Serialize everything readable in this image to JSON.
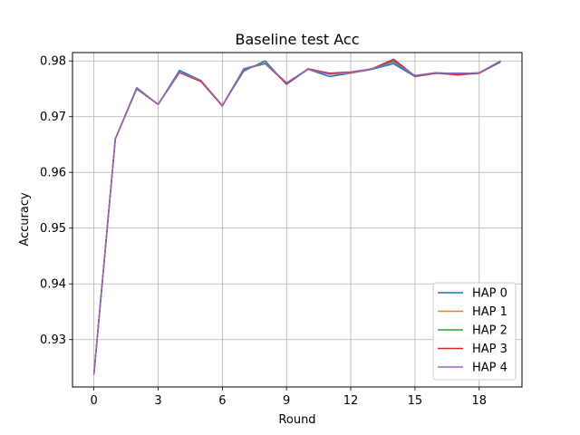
{
  "chart_data": {
    "type": "line",
    "title": "Baseline test Acc",
    "xlabel": "Round",
    "ylabel": "Accuracy",
    "xlim": [
      -1,
      20
    ],
    "ylim": [
      0.9215,
      0.9815
    ],
    "xticks": [
      0,
      3,
      6,
      9,
      12,
      15,
      18
    ],
    "yticks": [
      0.93,
      0.94,
      0.95,
      0.96,
      0.97,
      0.98
    ],
    "ytick_labels": [
      "0.93",
      "0.94",
      "0.95",
      "0.96",
      "0.97",
      "0.98"
    ],
    "grid": true,
    "legend_position": "lower-right",
    "x": [
      0,
      1,
      2,
      3,
      4,
      5,
      6,
      7,
      8,
      9,
      10,
      11,
      12,
      13,
      14,
      15,
      16,
      17,
      18,
      19
    ],
    "series": [
      {
        "name": "HAP 0",
        "color": "#1f77b4",
        "values": [
          0.9237,
          0.966,
          0.9752,
          0.9722,
          0.9783,
          0.9765,
          0.972,
          0.9782,
          0.98,
          0.9758,
          0.9785,
          0.9772,
          0.9778,
          0.9785,
          0.9795,
          0.9772,
          0.9778,
          0.9778,
          0.9778,
          0.9798
        ]
      },
      {
        "name": "HAP 1",
        "color": "#ff7f0e",
        "values": [
          0.9237,
          0.966,
          0.975,
          0.9722,
          0.978,
          0.9764,
          0.972,
          0.9785,
          0.9795,
          0.976,
          0.9785,
          0.9776,
          0.9778,
          0.9786,
          0.98,
          0.9773,
          0.9778,
          0.9776,
          0.9778,
          0.98
        ]
      },
      {
        "name": "HAP 2",
        "color": "#2ca02c",
        "values": [
          0.9237,
          0.966,
          0.975,
          0.9722,
          0.978,
          0.9764,
          0.972,
          0.9785,
          0.9795,
          0.976,
          0.9785,
          0.9777,
          0.9779,
          0.9786,
          0.9801,
          0.9773,
          0.9779,
          0.9775,
          0.9778,
          0.98
        ]
      },
      {
        "name": "HAP 3",
        "color": "#d62728",
        "values": [
          0.9237,
          0.966,
          0.975,
          0.9722,
          0.9779,
          0.9763,
          0.9719,
          0.9786,
          0.9796,
          0.9759,
          0.9786,
          0.9778,
          0.978,
          0.9786,
          0.9803,
          0.9773,
          0.9778,
          0.9775,
          0.9778,
          0.98
        ]
      },
      {
        "name": "HAP 4",
        "color": "#9467bd",
        "values": [
          0.9237,
          0.966,
          0.9751,
          0.9722,
          0.978,
          0.9765,
          0.972,
          0.9786,
          0.9796,
          0.9761,
          0.9785,
          0.9776,
          0.9779,
          0.9786,
          0.9798,
          0.9774,
          0.9779,
          0.9777,
          0.9779,
          0.98
        ]
      }
    ]
  }
}
